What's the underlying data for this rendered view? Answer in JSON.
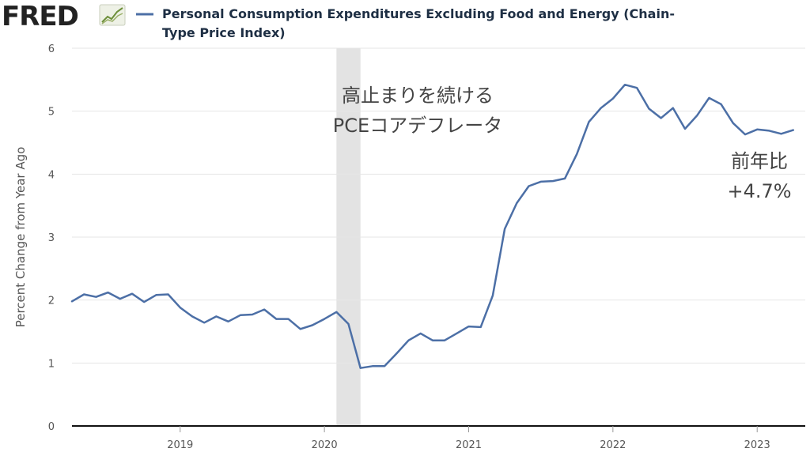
{
  "brand": {
    "name": "FRED",
    "icon": "trend-chart-icon"
  },
  "chart_data": {
    "type": "line",
    "title_lines": [
      "Personal Consumption Expenditures Excluding Food and Energy (Chain-",
      "Type Price Index)"
    ],
    "ylabel": "Percent Change from Year Ago",
    "xlabel": "",
    "ylim": [
      0,
      6
    ],
    "yticks": [
      0,
      1,
      2,
      3,
      4,
      5,
      6
    ],
    "xlim": [
      "2018-04",
      "2023-05"
    ],
    "xticks": [
      "2019",
      "2020",
      "2021",
      "2022",
      "2023"
    ],
    "grid": true,
    "recession": {
      "start": "2020-02",
      "end": "2020-04"
    },
    "series": [
      {
        "color": "#4c6fa6",
        "x": [
          "2018-04",
          "2018-05",
          "2018-06",
          "2018-07",
          "2018-08",
          "2018-09",
          "2018-10",
          "2018-11",
          "2018-12",
          "2019-01",
          "2019-02",
          "2019-03",
          "2019-04",
          "2019-05",
          "2019-06",
          "2019-07",
          "2019-08",
          "2019-09",
          "2019-10",
          "2019-11",
          "2019-12",
          "2020-01",
          "2020-02",
          "2020-03",
          "2020-04",
          "2020-05",
          "2020-06",
          "2020-07",
          "2020-08",
          "2020-09",
          "2020-10",
          "2020-11",
          "2020-12",
          "2021-01",
          "2021-02",
          "2021-03",
          "2021-04",
          "2021-05",
          "2021-06",
          "2021-07",
          "2021-08",
          "2021-09",
          "2021-10",
          "2021-11",
          "2021-12",
          "2022-01",
          "2022-02",
          "2022-03",
          "2022-04",
          "2022-05",
          "2022-06",
          "2022-07",
          "2022-08",
          "2022-09",
          "2022-10",
          "2022-11",
          "2022-12",
          "2023-01",
          "2023-02",
          "2023-03",
          "2023-04"
        ],
        "values": [
          1.98,
          2.09,
          2.05,
          2.12,
          2.02,
          2.1,
          1.97,
          2.08,
          2.09,
          1.88,
          1.74,
          1.64,
          1.74,
          1.66,
          1.76,
          1.77,
          1.85,
          1.7,
          1.7,
          1.54,
          1.6,
          1.7,
          1.81,
          1.62,
          0.92,
          0.95,
          0.95,
          1.15,
          1.36,
          1.47,
          1.36,
          1.36,
          1.47,
          1.58,
          1.57,
          2.07,
          3.13,
          3.54,
          3.81,
          3.88,
          3.89,
          3.93,
          4.32,
          4.83,
          5.05,
          5.2,
          5.42,
          5.37,
          5.04,
          4.89,
          5.05,
          4.72,
          4.93,
          5.21,
          5.11,
          4.81,
          4.63,
          4.71,
          4.69,
          4.64,
          4.7
        ]
      }
    ],
    "annotations": [
      {
        "lines": [
          "高止まりを続ける",
          "PCEコアデフレータ"
        ]
      },
      {
        "lines": [
          "前年比",
          "+4.7%"
        ]
      }
    ]
  }
}
